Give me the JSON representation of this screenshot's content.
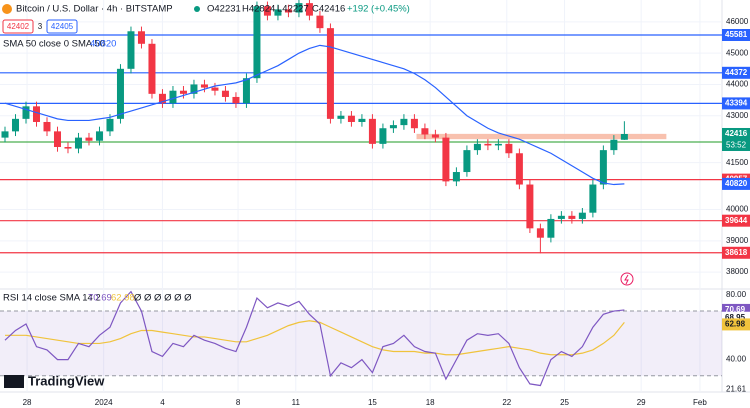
{
  "chart_data": {
    "type": "candlestick",
    "title": "Bitcoin / U.S. Dollar · 4h · BITSTAMP",
    "legend_values": [
      "O42231",
      "H42824",
      "L42227",
      "C42416",
      "+192 (+0.45%)"
    ],
    "quote": {
      "bid": "42402",
      "spread": "3",
      "ask": "42405"
    },
    "up_color": "#089981",
    "down_color": "#f23645",
    "open": [
      42300,
      42500,
      42900,
      43300,
      42800,
      42500,
      42000,
      41950,
      42300,
      42200,
      42500,
      42900,
      44500,
      45700,
      45300,
      43700,
      43400,
      43800,
      43700,
      44000,
      43900,
      43800,
      43600,
      43400,
      44200,
      46500,
      46200,
      46400,
      46300,
      46600,
      46200,
      45800,
      42900,
      43000,
      42800,
      42900,
      42100,
      42600,
      42700,
      42900,
      42600,
      42400,
      42300,
      40900,
      41200,
      41900,
      42100,
      42050,
      42100,
      41800,
      40800,
      39400,
      39100,
      39700,
      39800,
      39700,
      39900,
      40800,
      41900,
      42231
    ],
    "high": [
      42650,
      43050,
      43450,
      43450,
      42950,
      42650,
      42150,
      42450,
      42450,
      42650,
      43050,
      44650,
      45850,
      45850,
      45450,
      43850,
      43950,
      43950,
      44150,
      44150,
      44050,
      43950,
      43750,
      44350,
      46650,
      46650,
      46550,
      46550,
      46750,
      46750,
      46350,
      45950,
      43150,
      43150,
      43050,
      43050,
      42750,
      42850,
      43050,
      43050,
      42750,
      42550,
      42450,
      41350,
      42050,
      42250,
      42250,
      42250,
      42250,
      41950,
      40950,
      39550,
      39850,
      39950,
      39950,
      40050,
      40950,
      42050,
      42380,
      42824
    ],
    "low": [
      42150,
      42350,
      42750,
      42650,
      42350,
      41850,
      41800,
      41800,
      42050,
      42050,
      42350,
      42750,
      44350,
      45150,
      43550,
      43250,
      43250,
      43550,
      43550,
      43750,
      43650,
      43450,
      43250,
      43250,
      44050,
      46050,
      46050,
      46150,
      46150,
      46050,
      45650,
      42750,
      42750,
      42650,
      42650,
      41950,
      41950,
      42450,
      42550,
      42450,
      42250,
      42150,
      40750,
      40750,
      41050,
      41750,
      41900,
      41900,
      41650,
      40650,
      39250,
      38600,
      38950,
      39550,
      39550,
      39550,
      39750,
      40650,
      41750,
      42227
    ],
    "close": [
      42500,
      42900,
      43300,
      42800,
      42500,
      42000,
      41950,
      42300,
      42200,
      42500,
      42900,
      44500,
      45700,
      45300,
      43700,
      43400,
      43800,
      43700,
      44000,
      43900,
      43800,
      43600,
      43400,
      44200,
      46500,
      46200,
      46400,
      46300,
      46600,
      46200,
      45800,
      42900,
      43000,
      42800,
      42900,
      42100,
      42600,
      42700,
      42900,
      42600,
      42400,
      42300,
      40900,
      41200,
      41900,
      42100,
      42050,
      42100,
      41800,
      40800,
      39400,
      39100,
      39700,
      39800,
      39700,
      39900,
      40800,
      41900,
      42231,
      42416
    ],
    "xlim": [
      -0.476,
      68.3
    ],
    "xticks": [
      {
        "value": 2.1,
        "label": "28"
      },
      {
        "value": 9.4,
        "label": "2024"
      },
      {
        "value": 15,
        "label": "4"
      },
      {
        "value": 22.2,
        "label": "8"
      },
      {
        "value": 27.7,
        "label": "11"
      },
      {
        "value": 35,
        "label": "15"
      },
      {
        "value": 40.5,
        "label": "18"
      },
      {
        "value": 47.8,
        "label": "22"
      },
      {
        "value": 53.3,
        "label": "25"
      },
      {
        "value": 60.6,
        "label": "29"
      },
      {
        "value": 66.2,
        "label": "Feb"
      }
    ],
    "ylim": [
      37460,
      46700
    ],
    "yticks": [
      46000,
      45000,
      44000,
      43000,
      41500,
      40000,
      39000,
      38000
    ],
    "levels": [
      {
        "value": 45581,
        "color": "#2962ff"
      },
      {
        "value": 44372,
        "color": "#2962ff"
      },
      {
        "value": 43394,
        "color": "#2962ff"
      },
      {
        "value": 42161,
        "color": "#4caf50"
      },
      {
        "value": 40957,
        "color": "#f23645"
      },
      {
        "value": 39644,
        "color": "#f23645"
      },
      {
        "value": 38618,
        "color": "#f23645"
      }
    ],
    "zone": {
      "from": 42250,
      "to": 42420,
      "start": 39.2,
      "end": 63,
      "color": "#f7b6a0"
    },
    "last_price": {
      "value": 42416,
      "countdown": "53:52"
    },
    "sma": {
      "label": "SMA 50 close 0 SMA 50",
      "value": 40820,
      "color": "#2962ff",
      "values": [
        43400,
        43300,
        43200,
        43100,
        43000,
        42900,
        42850,
        42850,
        42850,
        42900,
        42950,
        43050,
        43150,
        43250,
        43350,
        43450,
        43550,
        43650,
        43750,
        43850,
        43950,
        44000,
        44050,
        44150,
        44300,
        44450,
        44600,
        44800,
        45000,
        45150,
        45250,
        45200,
        45100,
        45000,
        44900,
        44800,
        44700,
        44600,
        44500,
        44350,
        44150,
        43900,
        43600,
        43300,
        43000,
        42800,
        42600,
        42450,
        42350,
        42250,
        42100,
        41950,
        41800,
        41600,
        41400,
        41200,
        41000,
        40850,
        40800,
        40820
      ]
    },
    "rsi": {
      "label": "RSI 14 close SMA 14 2",
      "value": 70.69,
      "sma_value": 62.98,
      "other_value": 68.95,
      "na": "Ø Ø Ø Ø Ø Ø",
      "color": "#7e57c2",
      "sma_color": "#f0c33c",
      "band": [
        30,
        70
      ],
      "ylim": [
        20,
        83
      ],
      "yticks": [
        {
          "value": 80,
          "label": "80.00"
        },
        {
          "value": 40,
          "label": "40.00"
        },
        21.61
      ],
      "values": [
        52,
        58,
        62,
        48,
        46,
        40,
        40,
        50,
        48,
        55,
        60,
        75,
        82,
        70,
        45,
        42,
        50,
        48,
        55,
        52,
        50,
        47,
        45,
        60,
        78,
        72,
        75,
        73,
        76,
        68,
        62,
        30,
        38,
        35,
        40,
        32,
        48,
        50,
        55,
        48,
        45,
        44,
        28,
        40,
        52,
        56,
        55,
        56,
        50,
        35,
        25,
        24,
        40,
        45,
        42,
        48,
        60,
        68,
        70,
        70.69
      ],
      "sma_values": [
        55,
        55,
        55,
        54,
        53,
        52,
        51,
        50,
        50,
        50,
        51,
        53,
        56,
        58,
        58,
        57,
        56,
        55,
        54,
        54,
        53,
        52,
        51,
        51,
        53,
        55,
        58,
        61,
        63,
        64,
        63,
        60,
        57,
        54,
        51,
        48,
        46,
        45,
        45,
        45,
        44,
        44,
        43,
        43,
        44,
        45,
        46,
        47,
        48,
        47,
        46,
        44,
        43,
        43,
        43,
        44,
        46,
        50,
        55,
        62.98
      ]
    },
    "brand": "TradingView"
  }
}
